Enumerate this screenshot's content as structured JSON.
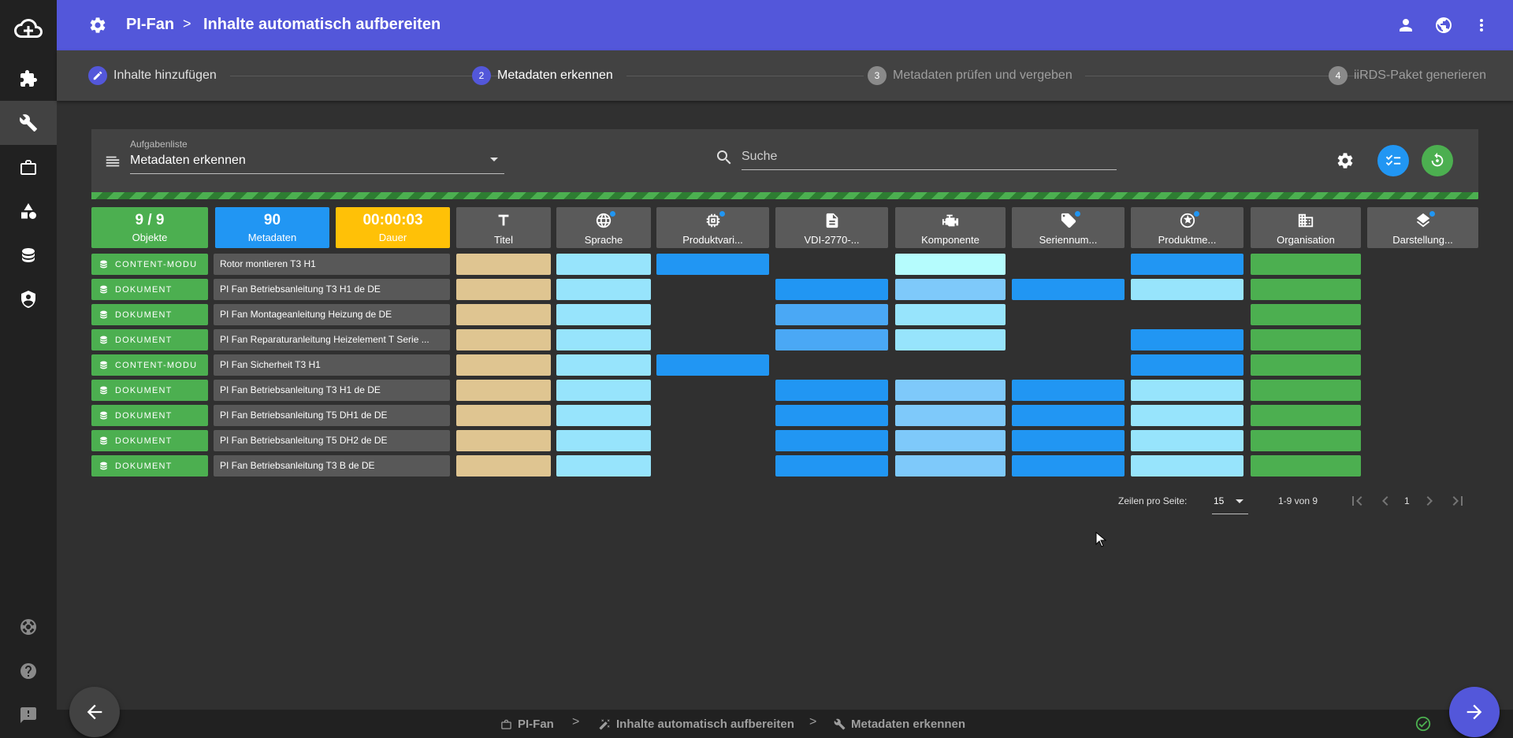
{
  "app": {
    "breadcrumb_root": "PI-Fan",
    "breadcrumb_sep": ">",
    "breadcrumb_page": "Inhalte automatisch aufbereiten"
  },
  "rail": {
    "icons": [
      "cloud-plus-icon",
      "puzzle-icon",
      "wrench-icon",
      "briefcase-icon",
      "shapes-icon",
      "database-icon",
      "shield-account-icon",
      "lifebuoy-icon",
      "help-icon",
      "feedback-icon"
    ]
  },
  "stepper": {
    "steps": [
      {
        "num": "",
        "label": "Inhalte hinzufügen",
        "state": "done"
      },
      {
        "num": "2",
        "label": "Metadaten erkennen",
        "state": "active"
      },
      {
        "num": "3",
        "label": "Metadaten prüfen und vergeben",
        "state": "pending"
      },
      {
        "num": "4",
        "label": "iiRDS-Paket generieren",
        "state": "pending"
      }
    ]
  },
  "toolbar": {
    "tasklist_label": "Aufgabenliste",
    "tasklist_value": "Metadaten erkennen",
    "search_placeholder": "Suche"
  },
  "stats": {
    "objects_value": "9 / 9",
    "objects_label": "Objekte",
    "metadata_value": "90",
    "metadata_label": "Metadaten",
    "duration_value": "00:00:03",
    "duration_label": "Dauer"
  },
  "columns": [
    {
      "label": "Titel",
      "icon": "title-icon",
      "badge": false
    },
    {
      "label": "Sprache",
      "icon": "globe-icon",
      "badge": true
    },
    {
      "label": "Produktvari...",
      "icon": "chip-icon",
      "badge": true
    },
    {
      "label": "VDI-2770-...",
      "icon": "document-icon",
      "badge": false
    },
    {
      "label": "Komponente",
      "icon": "engine-icon",
      "badge": false
    },
    {
      "label": "Seriennum...",
      "icon": "tag-icon",
      "badge": true
    },
    {
      "label": "Produktme...",
      "icon": "star-circle-icon",
      "badge": true
    },
    {
      "label": "Organisation",
      "icon": "building-icon",
      "badge": false
    },
    {
      "label": "Darstellung...",
      "icon": "layers-icon",
      "badge": true
    }
  ],
  "rows": [
    {
      "type": "CONTENT-MODU",
      "title": "Rotor montieren T3 H1",
      "cells": [
        "tan",
        "sky",
        "blue",
        "",
        "mint",
        "",
        "blue",
        "green",
        ""
      ]
    },
    {
      "type": "DOKUMENT",
      "title": "PI Fan Betriebsanleitung T3 H1 de DE",
      "cells": [
        "tan",
        "sky",
        "",
        "blue",
        "light",
        "blue",
        "sky",
        "green",
        ""
      ]
    },
    {
      "type": "DOKUMENT",
      "title": "PI Fan Montageanleitung Heizung de DE",
      "cells": [
        "tan",
        "sky",
        "",
        "mid",
        "sky",
        "",
        "",
        "green",
        ""
      ]
    },
    {
      "type": "DOKUMENT",
      "title": "PI Fan Reparaturanleitung Heizelement T Serie ...",
      "cells": [
        "tan",
        "sky",
        "",
        "mid",
        "sky",
        "",
        "blue",
        "green",
        ""
      ]
    },
    {
      "type": "CONTENT-MODU",
      "title": "PI Fan Sicherheit T3 H1",
      "cells": [
        "tan",
        "sky",
        "blue",
        "",
        "",
        "",
        "blue",
        "green",
        ""
      ]
    },
    {
      "type": "DOKUMENT",
      "title": "PI Fan Betriebsanleitung T3 H1 de DE",
      "cells": [
        "tan",
        "sky",
        "",
        "blue",
        "light",
        "blue",
        "sky",
        "green",
        ""
      ]
    },
    {
      "type": "DOKUMENT",
      "title": "PI Fan Betriebsanleitung T5 DH1 de DE",
      "cells": [
        "tan",
        "sky",
        "",
        "blue",
        "light",
        "blue",
        "sky",
        "green",
        ""
      ]
    },
    {
      "type": "DOKUMENT",
      "title": "PI Fan Betriebsanleitung T5 DH2 de DE",
      "cells": [
        "tan",
        "sky",
        "",
        "blue",
        "light",
        "blue",
        "sky",
        "green",
        ""
      ]
    },
    {
      "type": "DOKUMENT",
      "title": "PI Fan Betriebsanleitung T3 B de DE",
      "cells": [
        "tan",
        "sky",
        "",
        "blue",
        "light",
        "blue",
        "sky",
        "green",
        ""
      ]
    }
  ],
  "colors": {
    "tan": "#dfc591",
    "sky": "#97e4fc",
    "blue": "#2196f3",
    "mid": "#4aa8f5",
    "light": "#7ec9fa",
    "mint": "#b5fcfd",
    "green": "#4caf50",
    "accent": "#5357da"
  },
  "pagination": {
    "rows_per_page_label": "Zeilen pro Seite:",
    "rows_per_page_value": "15",
    "range": "1-9 von 9",
    "page": "1"
  },
  "footer": {
    "crumb_1": "PI-Fan",
    "crumb_2": "Inhalte automatisch aufbereiten",
    "crumb_3": "Metadaten erkennen",
    "sep": ">"
  }
}
